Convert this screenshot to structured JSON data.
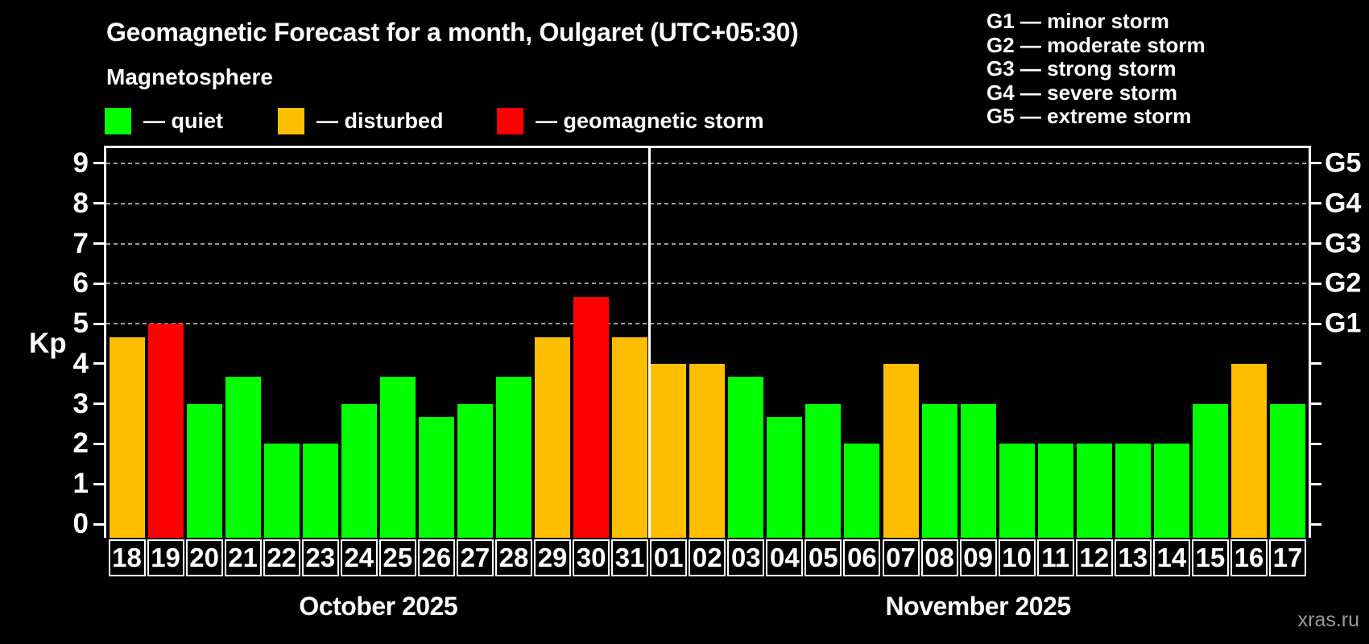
{
  "header": {
    "title": "Geomagnetic Forecast for a month, Oulgaret (UTC+05:30)",
    "subtitle": "Magnetosphere"
  },
  "legend": {
    "items": [
      {
        "key": "quiet",
        "label": "— quiet",
        "color": "#00ff00"
      },
      {
        "key": "disturbed",
        "label": "— disturbed",
        "color": "#ffbf00"
      },
      {
        "key": "storm",
        "label": "— geomagnetic storm",
        "color": "#ff0000"
      }
    ]
  },
  "g_legend": {
    "items": [
      {
        "label": "G1 — minor storm"
      },
      {
        "label": "G2 — moderate storm"
      },
      {
        "label": "G3 — strong storm"
      },
      {
        "label": "G4 — severe storm"
      },
      {
        "label": "G5 — extreme storm"
      }
    ]
  },
  "watermark": "xras.ru",
  "chart_data": {
    "type": "bar",
    "title": "Geomagnetic Forecast for a month, Oulgaret (UTC+05:30)",
    "ylabel": "Kp",
    "xlabel": "",
    "ylim": [
      -0.35,
      9.4
    ],
    "grid": true,
    "gridline_values": [
      5,
      6,
      7,
      8,
      9
    ],
    "yticks": [
      0,
      1,
      2,
      3,
      4,
      5,
      6,
      7,
      8,
      9
    ],
    "right_axis": [
      {
        "label": "G1",
        "value": 5
      },
      {
        "label": "G2",
        "value": 6
      },
      {
        "label": "G3",
        "value": 7
      },
      {
        "label": "G4",
        "value": 8
      },
      {
        "label": "G5",
        "value": 9
      }
    ],
    "legend_position": "top",
    "status_colors": {
      "quiet": "#00ff00",
      "disturbed": "#ffbf00",
      "storm": "#ff0000"
    },
    "months": [
      {
        "key": "oct",
        "label": "October 2025",
        "days": [
          {
            "day": "18",
            "kp": 4.67,
            "status": "disturbed"
          },
          {
            "day": "19",
            "kp": 5,
            "status": "storm"
          },
          {
            "day": "20",
            "kp": 3,
            "status": "quiet"
          },
          {
            "day": "21",
            "kp": 3.67,
            "status": "quiet"
          },
          {
            "day": "22",
            "kp": 2,
            "status": "quiet"
          },
          {
            "day": "23",
            "kp": 2,
            "status": "quiet"
          },
          {
            "day": "24",
            "kp": 3,
            "status": "quiet"
          },
          {
            "day": "25",
            "kp": 3.67,
            "status": "quiet"
          },
          {
            "day": "26",
            "kp": 2.67,
            "status": "quiet"
          },
          {
            "day": "27",
            "kp": 3,
            "status": "quiet"
          },
          {
            "day": "28",
            "kp": 3.67,
            "status": "quiet"
          },
          {
            "day": "29",
            "kp": 4.67,
            "status": "disturbed"
          },
          {
            "day": "30",
            "kp": 5.67,
            "status": "storm"
          },
          {
            "day": "31",
            "kp": 4.67,
            "status": "disturbed"
          }
        ]
      },
      {
        "key": "nov",
        "label": "November 2025",
        "days": [
          {
            "day": "01",
            "kp": 4,
            "status": "disturbed"
          },
          {
            "day": "02",
            "kp": 4,
            "status": "disturbed"
          },
          {
            "day": "03",
            "kp": 3.67,
            "status": "quiet"
          },
          {
            "day": "04",
            "kp": 2.67,
            "status": "quiet"
          },
          {
            "day": "05",
            "kp": 3,
            "status": "quiet"
          },
          {
            "day": "06",
            "kp": 2,
            "status": "quiet"
          },
          {
            "day": "07",
            "kp": 4,
            "status": "disturbed"
          },
          {
            "day": "08",
            "kp": 3,
            "status": "quiet"
          },
          {
            "day": "09",
            "kp": 3,
            "status": "quiet"
          },
          {
            "day": "10",
            "kp": 2,
            "status": "quiet"
          },
          {
            "day": "11",
            "kp": 2,
            "status": "quiet"
          },
          {
            "day": "12",
            "kp": 2,
            "status": "quiet"
          },
          {
            "day": "13",
            "kp": 2,
            "status": "quiet"
          },
          {
            "day": "14",
            "kp": 2,
            "status": "quiet"
          },
          {
            "day": "15",
            "kp": 3,
            "status": "quiet"
          },
          {
            "day": "16",
            "kp": 4,
            "status": "disturbed"
          },
          {
            "day": "17",
            "kp": 3,
            "status": "quiet"
          }
        ]
      }
    ]
  }
}
